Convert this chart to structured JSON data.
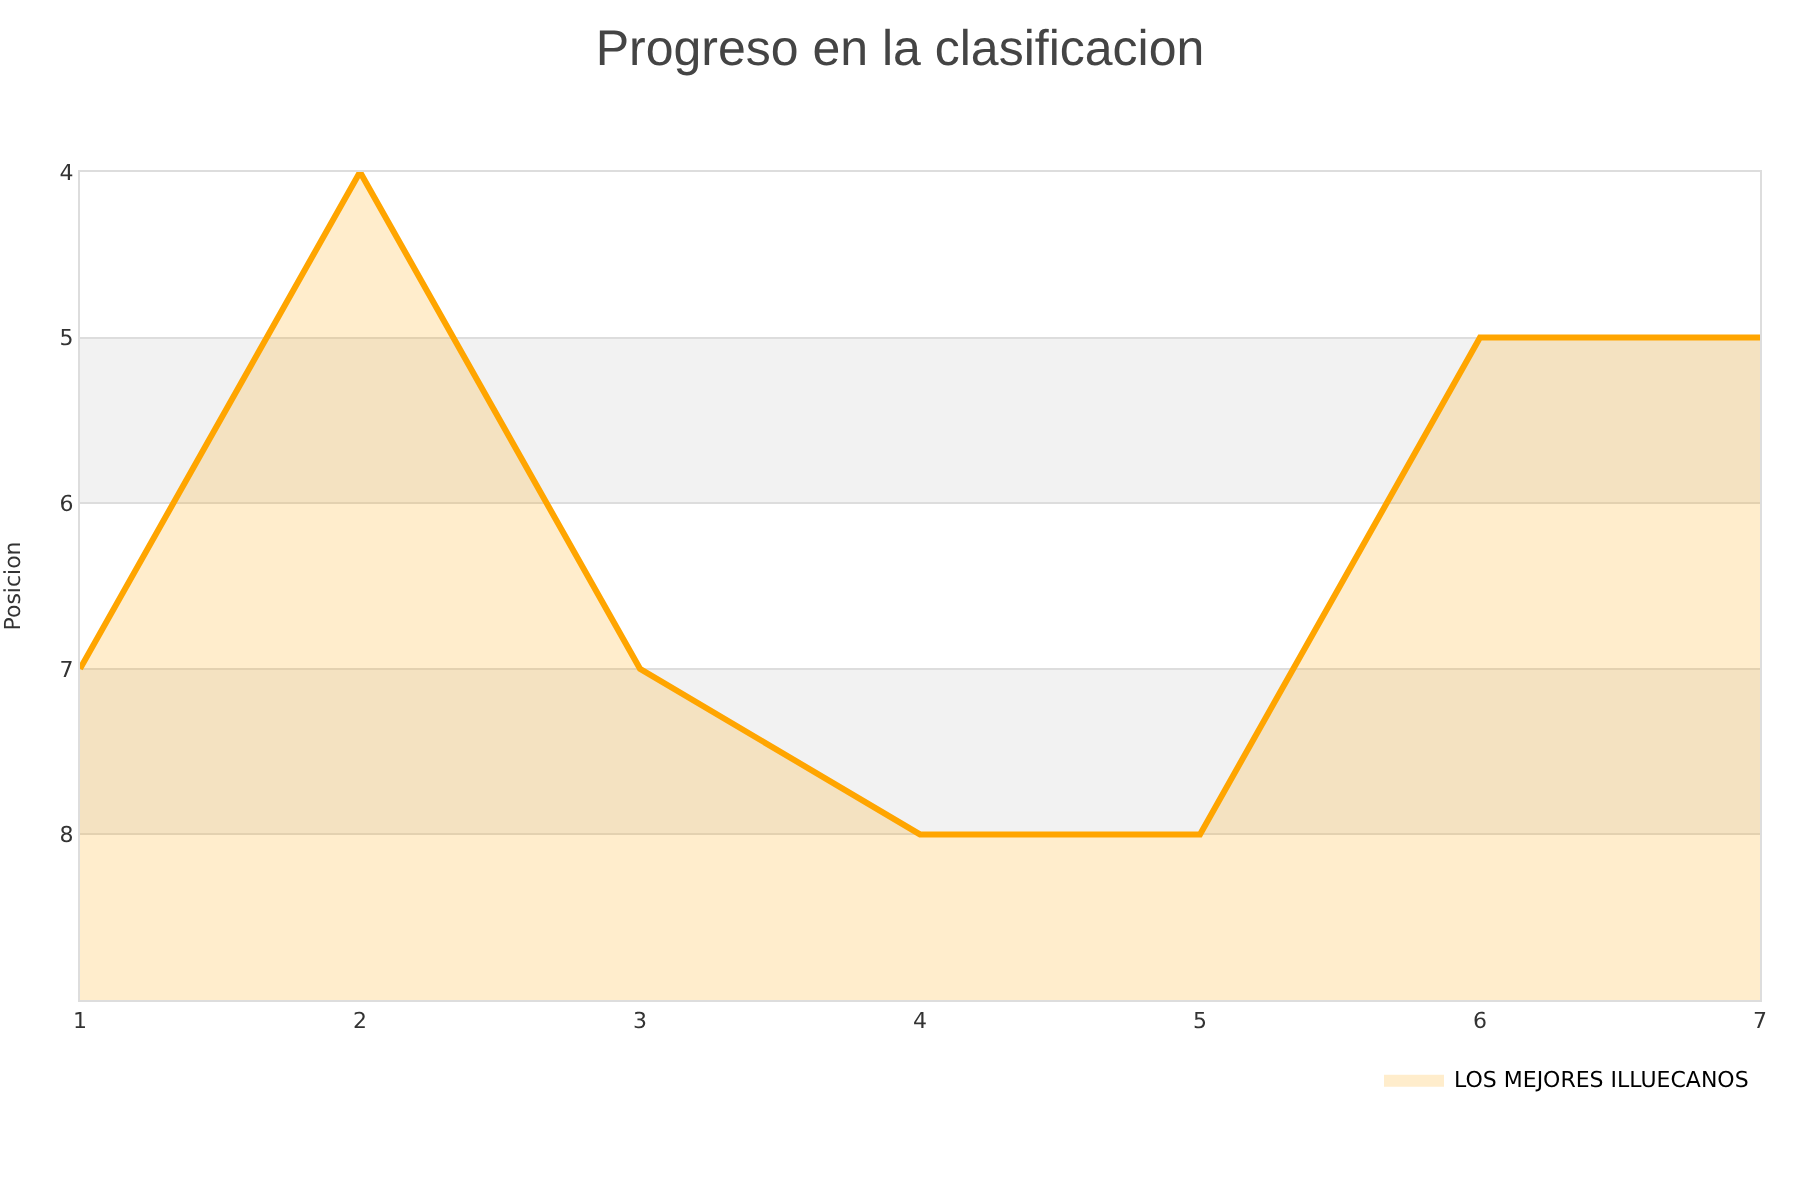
{
  "chart_data": {
    "type": "area",
    "title": "Progreso en la clasificacion",
    "ylabel": "Posicion",
    "x": [
      1,
      2,
      3,
      4,
      5,
      6,
      7
    ],
    "series": [
      {
        "name": "LOS MEJORES ILLUECANOS",
        "color": "#ffa500",
        "values": [
          7,
          4,
          7,
          8,
          8,
          5,
          5
        ]
      }
    ],
    "xlim": [
      1,
      7
    ],
    "xticks": [
      1,
      2,
      3,
      4,
      5,
      6,
      7
    ],
    "ylim": [
      9,
      4
    ],
    "yticks": [
      4,
      5,
      6,
      7,
      8
    ],
    "bands": [
      {
        "axis": "y",
        "from": 5,
        "to": 6,
        "color": "#f2f2f2"
      },
      {
        "axis": "y",
        "from": 7,
        "to": 8,
        "color": "#f2f2f2"
      }
    ],
    "grid": "y",
    "legend": "bottom right",
    "marker": "none",
    "line_style": "solid"
  }
}
